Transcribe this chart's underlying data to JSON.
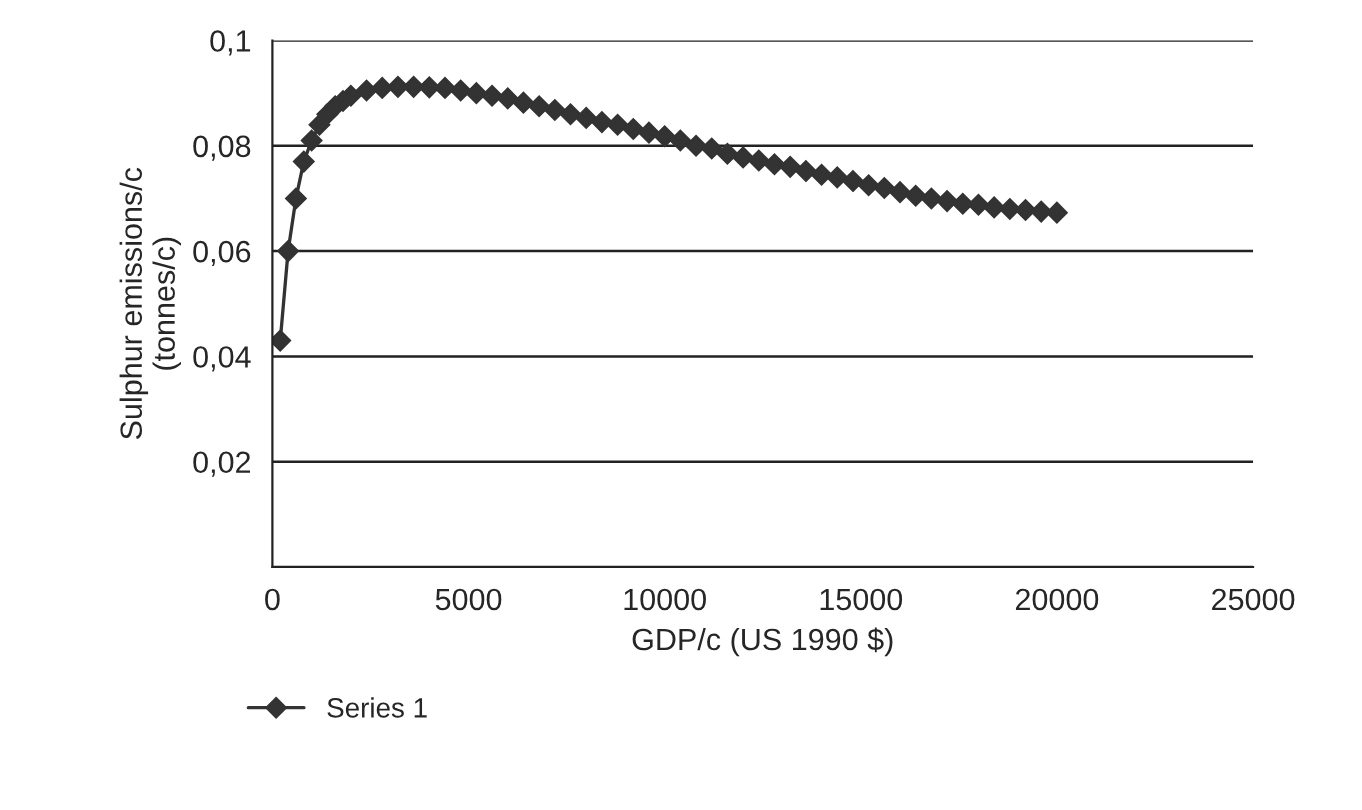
{
  "chart_data": {
    "type": "line",
    "xlabel": "GDP/c (US 1990 $)",
    "ylabel": "Sulphur emissions/c\n(tonnes/c)",
    "x": [
      200,
      400,
      600,
      800,
      1000,
      1200,
      1400,
      1600,
      1800,
      2000,
      2400,
      2800,
      3200,
      3600,
      4000,
      4400,
      4800,
      5200,
      5600,
      6000,
      6400,
      6800,
      7200,
      7600,
      8000,
      8400,
      8800,
      9200,
      9600,
      10000,
      10400,
      10800,
      11200,
      11600,
      12000,
      12400,
      12800,
      13200,
      13600,
      14000,
      14400,
      14800,
      15200,
      15600,
      16000,
      16400,
      16800,
      17200,
      17600,
      18000,
      18400,
      18800,
      19200,
      19600,
      20000
    ],
    "series": [
      {
        "name": "Series 1",
        "color": "#333333",
        "values": [
          0.043,
          0.06,
          0.07,
          0.077,
          0.081,
          0.084,
          0.086,
          0.0875,
          0.0885,
          0.0895,
          0.0905,
          0.091,
          0.0912,
          0.0912,
          0.0911,
          0.091,
          0.0905,
          0.09,
          0.0895,
          0.089,
          0.0882,
          0.0875,
          0.0868,
          0.086,
          0.0853,
          0.0845,
          0.084,
          0.0832,
          0.0825,
          0.0818,
          0.081,
          0.08,
          0.0795,
          0.0785,
          0.0778,
          0.0772,
          0.0765,
          0.076,
          0.0752,
          0.0745,
          0.074,
          0.0733,
          0.0725,
          0.072,
          0.0712,
          0.0705,
          0.07,
          0.0695,
          0.069,
          0.0688,
          0.0683,
          0.068,
          0.0678,
          0.0675,
          0.0673
        ]
      }
    ],
    "xlim": [
      0,
      25000
    ],
    "xticks": [
      0,
      5000,
      10000,
      15000,
      20000,
      25000
    ],
    "ylim": [
      0,
      0.1
    ],
    "yticks": [
      {
        "value": 0,
        "label": null
      },
      {
        "value": 0.02,
        "label": "0,02"
      },
      {
        "value": 0.04,
        "label": "0,04"
      },
      {
        "value": 0.06,
        "label": "0,06"
      },
      {
        "value": 0.08,
        "label": "0,08"
      },
      {
        "value": 0.1,
        "label": "0,1"
      }
    ],
    "grid": "y",
    "legend": "bottom",
    "marker": "diamond",
    "line_style": "solid"
  }
}
